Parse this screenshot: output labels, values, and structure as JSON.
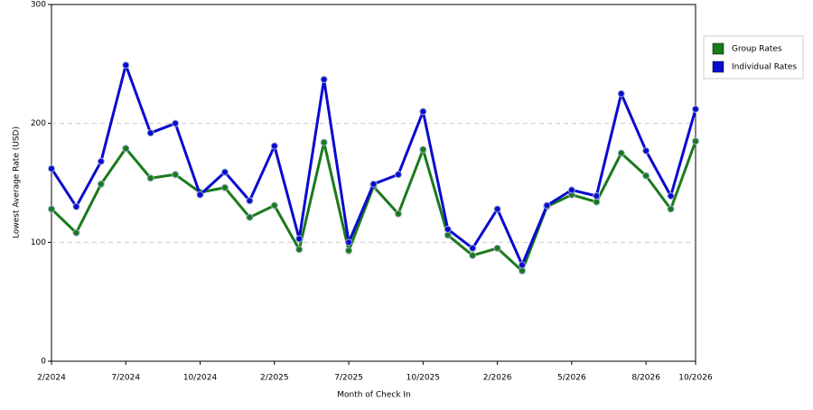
{
  "chart_data": {
    "type": "line",
    "x_label": "Month of Check In",
    "y_label": "Lowest Average Rate (USD)",
    "categories": [
      "2/2024",
      null,
      null,
      "7/2024",
      null,
      null,
      "10/2024",
      null,
      null,
      "2/2025",
      null,
      null,
      "7/2025",
      null,
      null,
      "10/2025",
      null,
      null,
      "2/2026",
      null,
      null,
      "5/2026",
      null,
      null,
      "8/2026",
      null,
      "10/2026"
    ],
    "series": [
      {
        "name": "Group Rates",
        "color": "#1a7a1a",
        "values": [
          128,
          108,
          149,
          179,
          154,
          157,
          142,
          146,
          121,
          131,
          94,
          184,
          93,
          147,
          124,
          178,
          106,
          89,
          95,
          76,
          130,
          140,
          134,
          175,
          156,
          128,
          185
        ]
      },
      {
        "name": "Individual Rates",
        "color": "#0a0ad0",
        "values": [
          162,
          130,
          168,
          249,
          192,
          200,
          140,
          159,
          135,
          181,
          103,
          237,
          100,
          149,
          157,
          210,
          111,
          95,
          128,
          81,
          131,
          144,
          139,
          225,
          177,
          139,
          212
        ]
      }
    ],
    "ylim": [
      0,
      300
    ],
    "yticks": [
      0,
      100,
      200,
      300
    ],
    "grid": true,
    "legend": "right"
  }
}
